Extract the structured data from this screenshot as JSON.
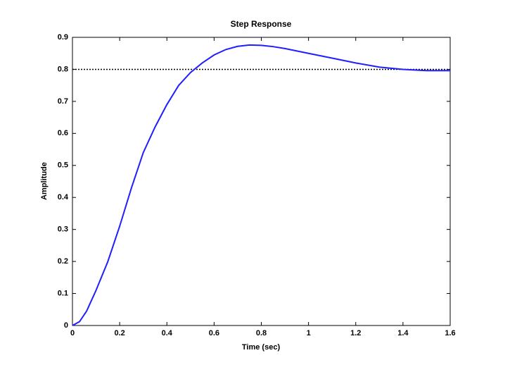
{
  "chart_data": {
    "type": "line",
    "title": "Step Response",
    "x_label": "Time (sec)",
    "y_label": "Amplitude",
    "x": [
      0,
      0.03,
      0.06,
      0.1,
      0.15,
      0.2,
      0.25,
      0.3,
      0.35,
      0.4,
      0.45,
      0.5,
      0.55,
      0.6,
      0.65,
      0.7,
      0.75,
      0.8,
      0.85,
      0.9,
      1.0,
      1.1,
      1.2,
      1.3,
      1.4,
      1.5,
      1.6
    ],
    "series": [
      {
        "color": "#1f1fff",
        "values": [
          0,
          0.012,
          0.045,
          0.11,
          0.2,
          0.31,
          0.43,
          0.54,
          0.62,
          0.69,
          0.75,
          0.79,
          0.82,
          0.845,
          0.862,
          0.872,
          0.876,
          0.875,
          0.871,
          0.865,
          0.85,
          0.835,
          0.82,
          0.807,
          0.8,
          0.796,
          0.796
        ]
      }
    ],
    "reference_line": {
      "value": 0.8,
      "color": "#000000"
    },
    "xlim": [
      0,
      1.6
    ],
    "xticks": [
      0,
      0.2,
      0.4,
      0.6,
      0.8,
      1,
      1.2,
      1.4,
      1.6
    ],
    "ylim": [
      0,
      0.9
    ],
    "yticks": [
      0,
      0.1,
      0.2,
      0.3,
      0.4,
      0.5,
      0.6,
      0.7,
      0.8,
      0.9
    ]
  }
}
